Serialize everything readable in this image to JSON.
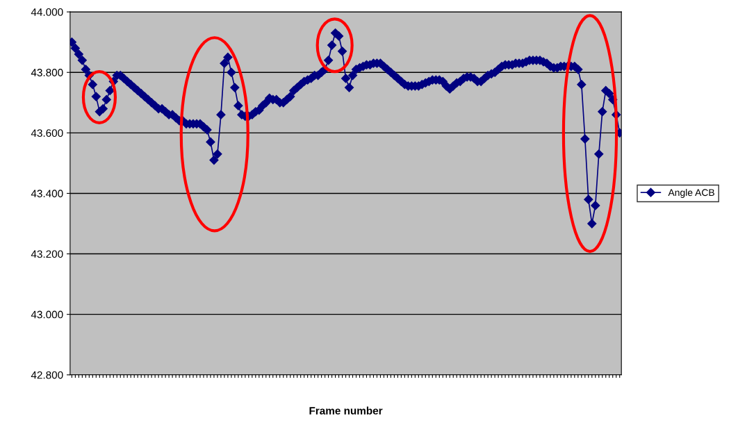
{
  "chart_data": {
    "type": "line",
    "xlabel": "Frame number",
    "categories": [
      null,
      null,
      null,
      null,
      null,
      null,
      null,
      null,
      null,
      null,
      null,
      null,
      null,
      null,
      null,
      null,
      null,
      null,
      null,
      null,
      null,
      null,
      null,
      null,
      null,
      null,
      null,
      null,
      null,
      null,
      null,
      null,
      null,
      null,
      null,
      null,
      null,
      null,
      null,
      null,
      null,
      null,
      null,
      null,
      null,
      null,
      null,
      null,
      null,
      null,
      null,
      null,
      null,
      null,
      null,
      null,
      null,
      null,
      null,
      null,
      null,
      null,
      null,
      null,
      null,
      null,
      null,
      null,
      null,
      null,
      null,
      null,
      null,
      null,
      null,
      null,
      null,
      null,
      null,
      null,
      null,
      null,
      null,
      null,
      null,
      null,
      null,
      null,
      null,
      null,
      null,
      null,
      null,
      null,
      null,
      null,
      null,
      null,
      null,
      null,
      null,
      null,
      null,
      null,
      null,
      null,
      null,
      null,
      null,
      null,
      null,
      null,
      null,
      null,
      null,
      null,
      null,
      null,
      null,
      null,
      null,
      null,
      null,
      null,
      null,
      null,
      null,
      null,
      null,
      null,
      null,
      null,
      null,
      null,
      null,
      null,
      null,
      null,
      null,
      null,
      null,
      null,
      null,
      null,
      null,
      null,
      null,
      null,
      null,
      null,
      null,
      null,
      null,
      null,
      null,
      null,
      null,
      null,
      null
    ],
    "series": [
      {
        "name": "Angle ACB",
        "color": "#000080",
        "values": [
          43.9,
          43.88,
          43.86,
          43.84,
          43.81,
          43.79,
          43.76,
          43.72,
          43.67,
          43.68,
          43.71,
          43.74,
          43.77,
          43.79,
          43.79,
          43.78,
          43.77,
          43.76,
          43.75,
          43.74,
          43.73,
          43.72,
          43.71,
          43.7,
          43.69,
          43.68,
          43.68,
          43.67,
          43.66,
          43.66,
          43.65,
          43.64,
          43.64,
          43.63,
          43.63,
          43.63,
          43.63,
          43.63,
          43.62,
          43.61,
          43.57,
          43.51,
          43.53,
          43.66,
          43.83,
          43.85,
          43.8,
          43.75,
          43.69,
          43.66,
          43.655,
          43.655,
          43.66,
          43.67,
          43.675,
          43.69,
          43.7,
          43.715,
          43.71,
          43.71,
          43.7,
          43.7,
          43.71,
          43.72,
          43.74,
          43.75,
          43.76,
          43.77,
          43.775,
          43.78,
          43.79,
          43.79,
          43.8,
          43.81,
          43.84,
          43.89,
          43.93,
          43.92,
          43.87,
          43.78,
          43.75,
          43.79,
          43.81,
          43.815,
          43.82,
          43.825,
          43.825,
          43.83,
          43.83,
          43.83,
          43.82,
          43.81,
          43.8,
          43.79,
          43.78,
          43.77,
          43.76,
          43.755,
          43.755,
          43.755,
          43.755,
          43.76,
          43.765,
          43.77,
          43.775,
          43.775,
          43.775,
          43.77,
          43.755,
          43.745,
          43.755,
          43.765,
          43.77,
          43.78,
          43.785,
          43.785,
          43.78,
          43.77,
          43.77,
          43.78,
          43.79,
          43.795,
          43.8,
          43.81,
          43.82,
          43.825,
          43.825,
          43.825,
          43.83,
          43.83,
          43.83,
          43.835,
          43.84,
          43.84,
          43.84,
          43.84,
          43.835,
          43.83,
          43.82,
          43.815,
          43.815,
          43.82,
          43.82,
          43.82,
          43.82,
          43.82,
          43.81,
          43.76,
          43.58,
          43.38,
          43.3,
          43.36,
          43.53,
          43.67,
          43.74,
          43.73,
          43.71,
          43.66,
          43.6
        ]
      }
    ],
    "ylim": [
      42.8,
      44.0
    ],
    "yticks": [
      {
        "value": 42.8,
        "label": "42.800"
      },
      {
        "value": 43.0,
        "label": "43.000"
      },
      {
        "value": 43.2,
        "label": "43.200"
      },
      {
        "value": 43.4,
        "label": "43.400"
      },
      {
        "value": 43.6,
        "label": "43.600"
      },
      {
        "value": 43.8,
        "label": "43.800"
      },
      {
        "value": 44.0,
        "label": "44.000"
      }
    ],
    "grid": "y",
    "legend": "right",
    "marker": "diamond",
    "line_style": "solid",
    "tick_labels": "y"
  }
}
